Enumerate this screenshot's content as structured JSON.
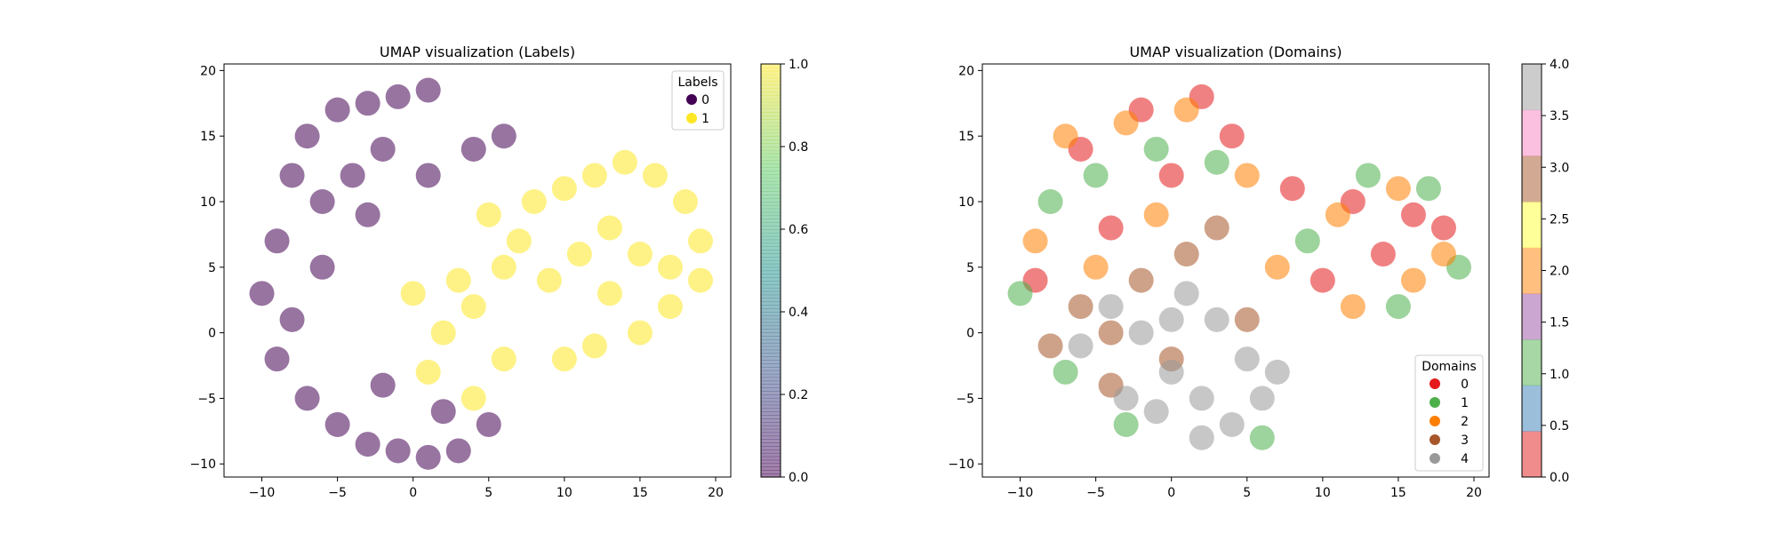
{
  "chart_data": [
    {
      "type": "scatter",
      "title": "UMAP visualization (Labels)",
      "xlabel": "",
      "ylabel": "",
      "xlim": [
        -12.5,
        21.0
      ],
      "ylim": [
        -11.0,
        20.5
      ],
      "x_ticks": [
        -10,
        -5,
        0,
        5,
        10,
        15,
        20
      ],
      "y_ticks": [
        -10,
        -5,
        0,
        5,
        10,
        15,
        20
      ],
      "grid": false,
      "legend": {
        "title": "Labels",
        "placement": "top-right",
        "entries": [
          {
            "label": "0",
            "color": "#440154"
          },
          {
            "label": "1",
            "color": "#fde725"
          }
        ]
      },
      "colorbar": {
        "colormap": "viridis",
        "alpha": 0.5,
        "min": 0.0,
        "max": 1.0,
        "ticks": [
          "0.0",
          "0.2",
          "0.4",
          "0.6",
          "0.8",
          "1.0"
        ]
      },
      "series": [
        {
          "name": "0",
          "color": "#440154",
          "points": [
            [
              -10,
              3
            ],
            [
              -9,
              7
            ],
            [
              -8,
              12
            ],
            [
              -7,
              15
            ],
            [
              -5,
              17
            ],
            [
              -3,
              17.5
            ],
            [
              -1,
              18
            ],
            [
              1,
              18.5
            ],
            [
              -6,
              10
            ],
            [
              -4,
              12
            ],
            [
              -2,
              14
            ],
            [
              -7,
              -5
            ],
            [
              -5,
              -7
            ],
            [
              -3,
              -8.5
            ],
            [
              -1,
              -9
            ],
            [
              1,
              -9.5
            ],
            [
              3,
              -9
            ],
            [
              -9,
              -2
            ],
            [
              -8,
              1
            ],
            [
              -6,
              5
            ],
            [
              -3,
              9
            ],
            [
              1,
              12
            ],
            [
              4,
              14
            ],
            [
              6,
              15
            ],
            [
              -2,
              -4
            ],
            [
              2,
              -6
            ],
            [
              5,
              -7
            ]
          ]
        },
        {
          "name": "1",
          "color": "#fde725",
          "points": [
            [
              8,
              10
            ],
            [
              10,
              11
            ],
            [
              12,
              12
            ],
            [
              14,
              13
            ],
            [
              16,
              12
            ],
            [
              18,
              10
            ],
            [
              19,
              7
            ],
            [
              19,
              4
            ],
            [
              17,
              2
            ],
            [
              15,
              0
            ],
            [
              12,
              -1
            ],
            [
              10,
              -2
            ],
            [
              9,
              4
            ],
            [
              11,
              6
            ],
            [
              13,
              8
            ],
            [
              15,
              6
            ],
            [
              17,
              5
            ],
            [
              13,
              3
            ],
            [
              6,
              5
            ],
            [
              4,
              2
            ],
            [
              2,
              0
            ],
            [
              6,
              -2
            ],
            [
              4,
              -5
            ],
            [
              7,
              7
            ],
            [
              5,
              9
            ],
            [
              3,
              4
            ],
            [
              1,
              -3
            ],
            [
              0,
              3
            ]
          ]
        }
      ]
    },
    {
      "type": "scatter",
      "title": "UMAP visualization (Domains)",
      "xlabel": "",
      "ylabel": "",
      "xlim": [
        -12.5,
        21.0
      ],
      "ylim": [
        -11.0,
        20.5
      ],
      "x_ticks": [
        -10,
        -5,
        0,
        5,
        10,
        15,
        20
      ],
      "y_ticks": [
        -10,
        -5,
        0,
        5,
        10,
        15,
        20
      ],
      "grid": false,
      "legend": {
        "title": "Domains",
        "placement": "lower-right",
        "entries": [
          {
            "label": "0",
            "color": "#e41a1c"
          },
          {
            "label": "1",
            "color": "#4daf4a"
          },
          {
            "label": "2",
            "color": "#ff7f00"
          },
          {
            "label": "3",
            "color": "#a65628"
          },
          {
            "label": "4",
            "color": "#999999"
          }
        ]
      },
      "colorbar": {
        "colormap": "Set1",
        "alpha": 0.5,
        "min": 0.0,
        "max": 4.0,
        "ticks": [
          "0.0",
          "0.5",
          "1.0",
          "1.5",
          "2.0",
          "2.5",
          "3.0",
          "3.5",
          "4.0"
        ],
        "bands": [
          "#e41a1c",
          "#377eb8",
          "#4daf4a",
          "#984ea3",
          "#ff7f00",
          "#ffff33",
          "#a65628",
          "#f781bf",
          "#999999"
        ]
      },
      "series": [
        {
          "name": "0",
          "color": "#e41a1c",
          "points": [
            [
              -6,
              14
            ],
            [
              -2,
              17
            ],
            [
              2,
              18
            ],
            [
              8,
              11
            ],
            [
              12,
              10
            ],
            [
              16,
              9
            ],
            [
              -9,
              4
            ],
            [
              -4,
              8
            ],
            [
              0,
              12
            ],
            [
              4,
              15
            ],
            [
              10,
              4
            ],
            [
              14,
              6
            ],
            [
              18,
              8
            ]
          ]
        },
        {
          "name": "1",
          "color": "#4daf4a",
          "points": [
            [
              -8,
              10
            ],
            [
              -5,
              12
            ],
            [
              -1,
              14
            ],
            [
              3,
              13
            ],
            [
              9,
              7
            ],
            [
              13,
              12
            ],
            [
              17,
              11
            ],
            [
              19,
              5
            ],
            [
              -7,
              -3
            ],
            [
              -3,
              -7
            ],
            [
              6,
              -8
            ],
            [
              15,
              2
            ],
            [
              -10,
              3
            ]
          ]
        },
        {
          "name": "2",
          "color": "#ff7f00",
          "points": [
            [
              -7,
              15
            ],
            [
              -3,
              16
            ],
            [
              1,
              17
            ],
            [
              5,
              12
            ],
            [
              11,
              9
            ],
            [
              15,
              11
            ],
            [
              18,
              6
            ],
            [
              -9,
              7
            ],
            [
              -5,
              5
            ],
            [
              -1,
              9
            ],
            [
              7,
              5
            ],
            [
              12,
              2
            ],
            [
              16,
              4
            ]
          ]
        },
        {
          "name": "3",
          "color": "#a65628",
          "points": [
            [
              -6,
              2
            ],
            [
              -4,
              0
            ],
            [
              -2,
              4
            ],
            [
              1,
              6
            ],
            [
              3,
              8
            ],
            [
              -8,
              -1
            ],
            [
              5,
              1
            ],
            [
              -4,
              -4
            ],
            [
              0,
              -2
            ]
          ]
        },
        {
          "name": "4",
          "color": "#999999",
          "points": [
            [
              -4,
              2
            ],
            [
              -2,
              0
            ],
            [
              0,
              -3
            ],
            [
              2,
              -5
            ],
            [
              4,
              -7
            ],
            [
              5,
              -2
            ],
            [
              3,
              1
            ],
            [
              1,
              3
            ],
            [
              -3,
              -5
            ],
            [
              -6,
              -1
            ],
            [
              6,
              -5
            ],
            [
              2,
              -8
            ],
            [
              -1,
              -6
            ],
            [
              7,
              -3
            ],
            [
              0,
              1
            ]
          ]
        }
      ]
    }
  ]
}
